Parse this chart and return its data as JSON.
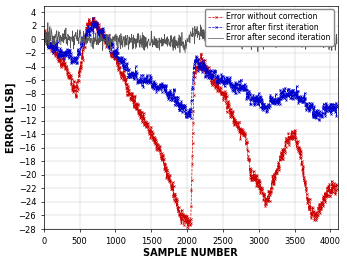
{
  "title": "",
  "xlabel": "SAMPLE NUMBER",
  "ylabel": "ERROR [LSB]",
  "xlim": [
    0,
    4100
  ],
  "ylim": [
    -28,
    5
  ],
  "yticks": [
    4,
    2,
    0,
    -2,
    -4,
    -6,
    -8,
    -10,
    -12,
    -14,
    -16,
    -18,
    -20,
    -22,
    -24,
    -26,
    -28
  ],
  "xticks": [
    0,
    500,
    1000,
    1500,
    2000,
    2500,
    3000,
    3500,
    4000
  ],
  "color_red": "#cc0000",
  "color_blue": "#0000cc",
  "color_gray": "#555555",
  "legend_labels": [
    "Error without correction",
    "Error after first iteration",
    "Error after second iteration"
  ],
  "n_samples": 4096,
  "seed": 42
}
